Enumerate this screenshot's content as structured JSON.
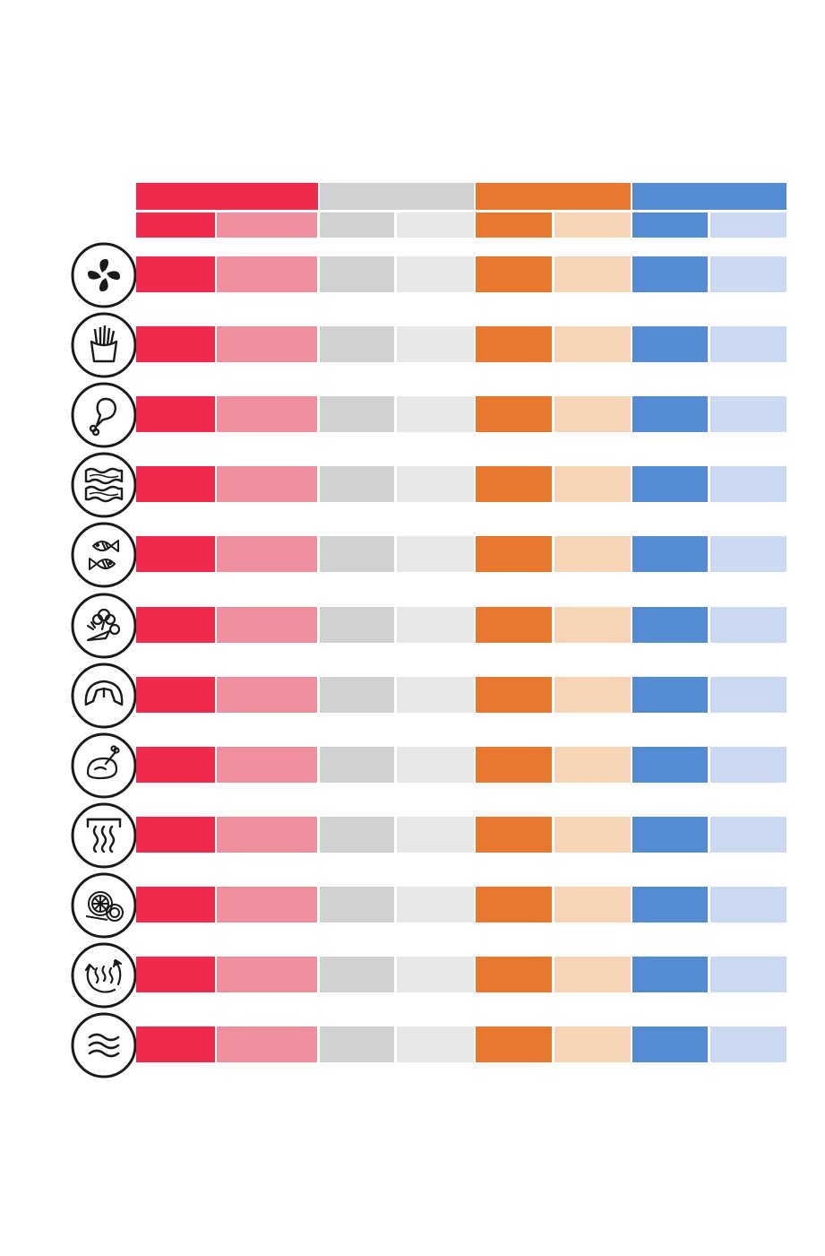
{
  "colors": {
    "red": "#ef2a4a",
    "red_light": "#f0909e",
    "gray": "#d1d1d1",
    "gray_light": "#e8e8e8",
    "orange": "#e8782e",
    "orange_light": "#f6d4b6",
    "blue": "#548bd2",
    "blue_light": "#cbd9f2",
    "icon_stroke": "#1a1a1a"
  },
  "column_groups": [
    {
      "name": "red",
      "color": "red",
      "sub_colors": [
        "red",
        "red_light"
      ]
    },
    {
      "name": "gray",
      "color": "gray",
      "sub_colors": [
        "gray",
        "gray_light"
      ]
    },
    {
      "name": "orange",
      "color": "orange",
      "sub_colors": [
        "orange",
        "orange_light"
      ]
    },
    {
      "name": "blue",
      "color": "blue",
      "sub_colors": [
        "blue",
        "blue_light"
      ]
    }
  ],
  "rows": [
    {
      "icon": "fan-icon"
    },
    {
      "icon": "fries-icon"
    },
    {
      "icon": "chicken-leg-icon"
    },
    {
      "icon": "bacon-icon"
    },
    {
      "icon": "fish-icon"
    },
    {
      "icon": "vegetables-icon"
    },
    {
      "icon": "croissant-icon"
    },
    {
      "icon": "roast-chicken-icon"
    },
    {
      "icon": "keep-warm-icon"
    },
    {
      "icon": "dehydrate-icon"
    },
    {
      "icon": "reheat-icon"
    },
    {
      "icon": "wave-icon"
    }
  ]
}
